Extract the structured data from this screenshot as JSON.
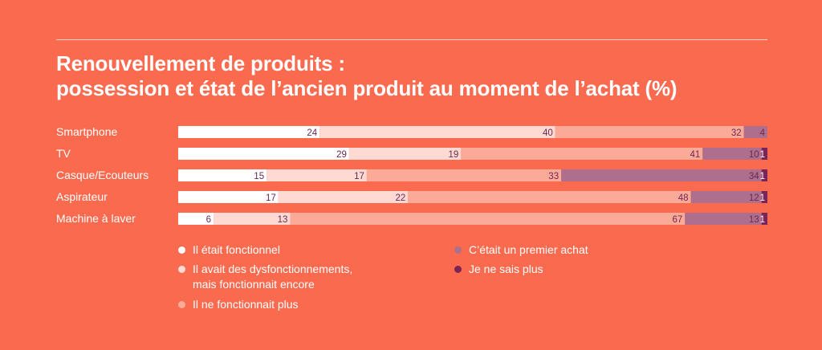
{
  "title": {
    "line1": "Renouvellement de produits :",
    "line2": "possession et état de l’ancien produit au moment de l’achat (%)"
  },
  "colors": {
    "background": "#F96A4E",
    "label_text": "#ffffff",
    "value_text": "#6A2A55"
  },
  "chart_data": {
    "type": "bar",
    "orientation": "horizontal",
    "stacked": true,
    "categories": [
      "Smartphone",
      "TV",
      "Casque/Ecouteurs",
      "Aspirateur",
      "Machine à laver"
    ],
    "series": [
      {
        "name": "Il était fonctionnel",
        "color": "#FFFFFF",
        "values": [
          24,
          29,
          15,
          17,
          6
        ]
      },
      {
        "name": "Il avait des dysfonctionnements, mais fonctionnait encore",
        "color": "#FEDAD2",
        "values": [
          40,
          19,
          17,
          22,
          13
        ]
      },
      {
        "name": "Il ne fonctionnait plus",
        "color": "#FBAA98",
        "values": [
          32,
          41,
          33,
          48,
          67
        ]
      },
      {
        "name": "C’était un premier achat",
        "color": "#AE6F8C",
        "values": [
          4,
          10,
          34,
          12,
          13
        ]
      },
      {
        "name": "Je ne sais plus",
        "color": "#7A2458",
        "values": [
          0,
          1,
          1,
          1,
          1
        ]
      }
    ],
    "xlim": [
      0,
      100
    ],
    "grid": false,
    "legend_position": "bottom"
  },
  "legend": {
    "items": [
      {
        "lines": [
          "Il était fonctionnel"
        ],
        "color": "#FFFFFF"
      },
      {
        "lines": [
          "Il avait des dysfonctionnements,",
          "mais fonctionnait encore"
        ],
        "color": "#FEDAD2"
      },
      {
        "lines": [
          "Il ne fonctionnait plus"
        ],
        "color": "#FBAA98"
      },
      {
        "lines": [
          "C’était un premier achat"
        ],
        "color": "#AE6F8C"
      },
      {
        "lines": [
          "Je ne sais plus"
        ],
        "color": "#7A2458"
      }
    ]
  }
}
